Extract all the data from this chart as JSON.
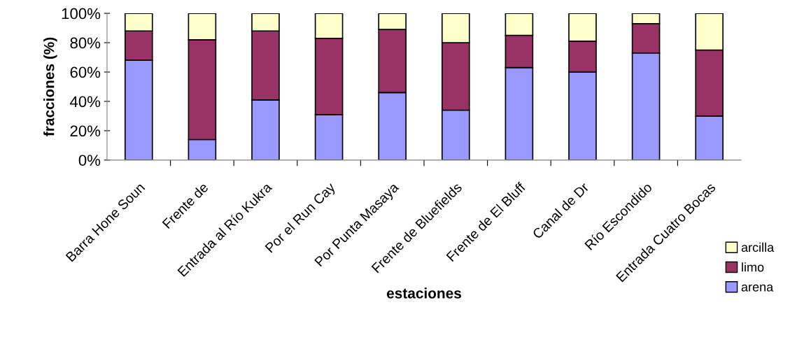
{
  "chart_data": {
    "type": "bar",
    "stacked": true,
    "xlabel": "estaciones",
    "ylabel": "fracciones (%)",
    "categories": [
      "Barra Hone Soun",
      "Frente de",
      "Entrada al Río Kukra",
      "Por el Run Cay",
      "Por Punta Masaya",
      "Frente de Bluefields",
      "Frente de El Bluff",
      "Canal de Dr",
      "Río Escondido",
      "Entrada Cuatro Bocas"
    ],
    "series": [
      {
        "name": "arena",
        "color": "#9999ff",
        "values": [
          68,
          14,
          41,
          31,
          46,
          34,
          63,
          60,
          73,
          30
        ]
      },
      {
        "name": "limo",
        "color": "#993366",
        "values": [
          20,
          68,
          47,
          52,
          43,
          46,
          22,
          21,
          20,
          45
        ]
      },
      {
        "name": "arcilla",
        "color": "#ffffcc",
        "values": [
          12,
          18,
          12,
          17,
          11,
          20,
          15,
          19,
          7,
          25
        ]
      }
    ],
    "ylim": [
      0,
      100
    ],
    "yticks": [
      {
        "value": 0,
        "label": "0%"
      },
      {
        "value": 20,
        "label": "20%"
      },
      {
        "value": 40,
        "label": "40%"
      },
      {
        "value": 60,
        "label": "60%"
      },
      {
        "value": 80,
        "label": "80%"
      },
      {
        "value": 100,
        "label": "100%"
      }
    ],
    "grid": false,
    "legend": "bottom right"
  }
}
